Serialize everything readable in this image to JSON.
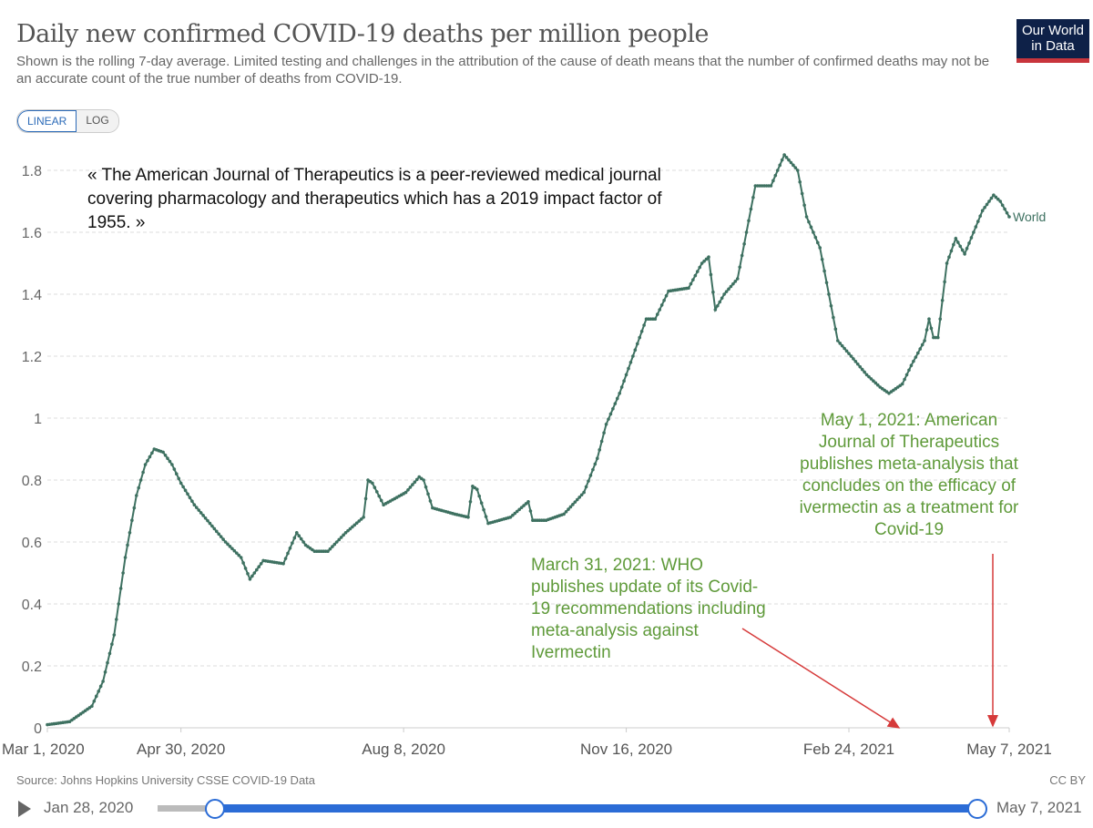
{
  "header": {
    "title": "Daily new confirmed COVID-19 deaths per million people",
    "subtitle": "Shown is the rolling 7-day average. Limited testing and challenges in the attribution of the cause of death means that the number of confirmed deaths may not be an accurate count of the true number of deaths from COVID-19.",
    "logo": "Our World in Data"
  },
  "toggle": {
    "linear": "LINEAR",
    "log": "LOG"
  },
  "annotations": {
    "quote": "« The American Journal of Therapeutics is a peer-reviewed medical journal covering pharmacology and therapeutics which has a 2019 impact factor of 1955. »",
    "who": "March 31, 2021: WHO publishes update of its Covid-19 recommendations including meta-analysis against Ivermectin",
    "ajt": "May 1, 2021: American Journal of Therapeutics publishes meta-analysis that concludes on the efficacy of ivermectin as a treatment for Covid-19"
  },
  "footer": {
    "source": "Source: Johns Hopkins University CSSE COVID-19 Data",
    "license": "CC BY",
    "start": "Jan 28, 2020",
    "end": "May 7, 2021"
  },
  "colors": {
    "line": "#3e7161",
    "arrow": "#d63a3a",
    "annotation": "#5f9a3a"
  },
  "chart_data": {
    "type": "line",
    "title": "Daily new confirmed COVID-19 deaths per million people",
    "x_unit": "days since Mar 1, 2020",
    "xlim": [
      0,
      432
    ],
    "ylim": [
      0,
      1.8
    ],
    "y_ticks": [
      "0",
      "0.2",
      "0.4",
      "0.6",
      "0.8",
      "1",
      "1.2",
      "1.4",
      "1.6",
      "1.8"
    ],
    "y_tick_values": [
      0,
      0.2,
      0.4,
      0.6,
      0.8,
      1,
      1.2,
      1.4,
      1.6,
      1.8
    ],
    "x_ticks": [
      "Mar 1, 2020",
      "Apr 30, 2020",
      "Aug 8, 2020",
      "Nov 16, 2020",
      "Feb 24, 2021",
      "May 7, 2021"
    ],
    "x_tick_values": [
      0,
      60,
      160,
      260,
      360,
      432
    ],
    "grid": true,
    "series": [
      {
        "name": "World",
        "x": [
          0,
          10,
          20,
          25,
          30,
          35,
          40,
          44,
          48,
          52,
          56,
          60,
          66,
          73,
          80,
          87,
          91,
          97,
          106,
          112,
          116,
          120,
          126,
          134,
          142,
          144,
          146,
          151,
          161,
          167,
          169,
          173,
          183,
          189,
          191,
          193,
          198,
          208,
          216,
          218,
          220,
          224,
          232,
          241,
          247,
          251,
          257,
          263,
          269,
          273,
          279,
          288,
          294,
          297,
          300,
          304,
          310,
          314,
          318,
          325,
          331,
          337,
          341,
          347,
          351,
          355,
          361,
          368,
          374,
          378,
          384,
          388,
          394,
          396,
          398,
          400,
          404,
          408,
          412,
          416,
          420,
          425,
          428,
          432
        ],
        "values": [
          0.01,
          0.02,
          0.07,
          0.15,
          0.3,
          0.55,
          0.75,
          0.85,
          0.9,
          0.89,
          0.85,
          0.79,
          0.72,
          0.66,
          0.6,
          0.55,
          0.48,
          0.54,
          0.53,
          0.63,
          0.59,
          0.57,
          0.57,
          0.63,
          0.68,
          0.8,
          0.79,
          0.72,
          0.76,
          0.81,
          0.8,
          0.71,
          0.69,
          0.68,
          0.78,
          0.77,
          0.66,
          0.68,
          0.73,
          0.67,
          0.67,
          0.67,
          0.69,
          0.76,
          0.87,
          0.98,
          1.08,
          1.2,
          1.32,
          1.32,
          1.41,
          1.42,
          1.5,
          1.52,
          1.35,
          1.4,
          1.45,
          1.6,
          1.75,
          1.75,
          1.85,
          1.8,
          1.65,
          1.55,
          1.4,
          1.25,
          1.2,
          1.14,
          1.1,
          1.08,
          1.11,
          1.17,
          1.25,
          1.32,
          1.26,
          1.26,
          1.5,
          1.58,
          1.53,
          1.6,
          1.67,
          1.72,
          1.7,
          1.65
        ]
      }
    ]
  }
}
